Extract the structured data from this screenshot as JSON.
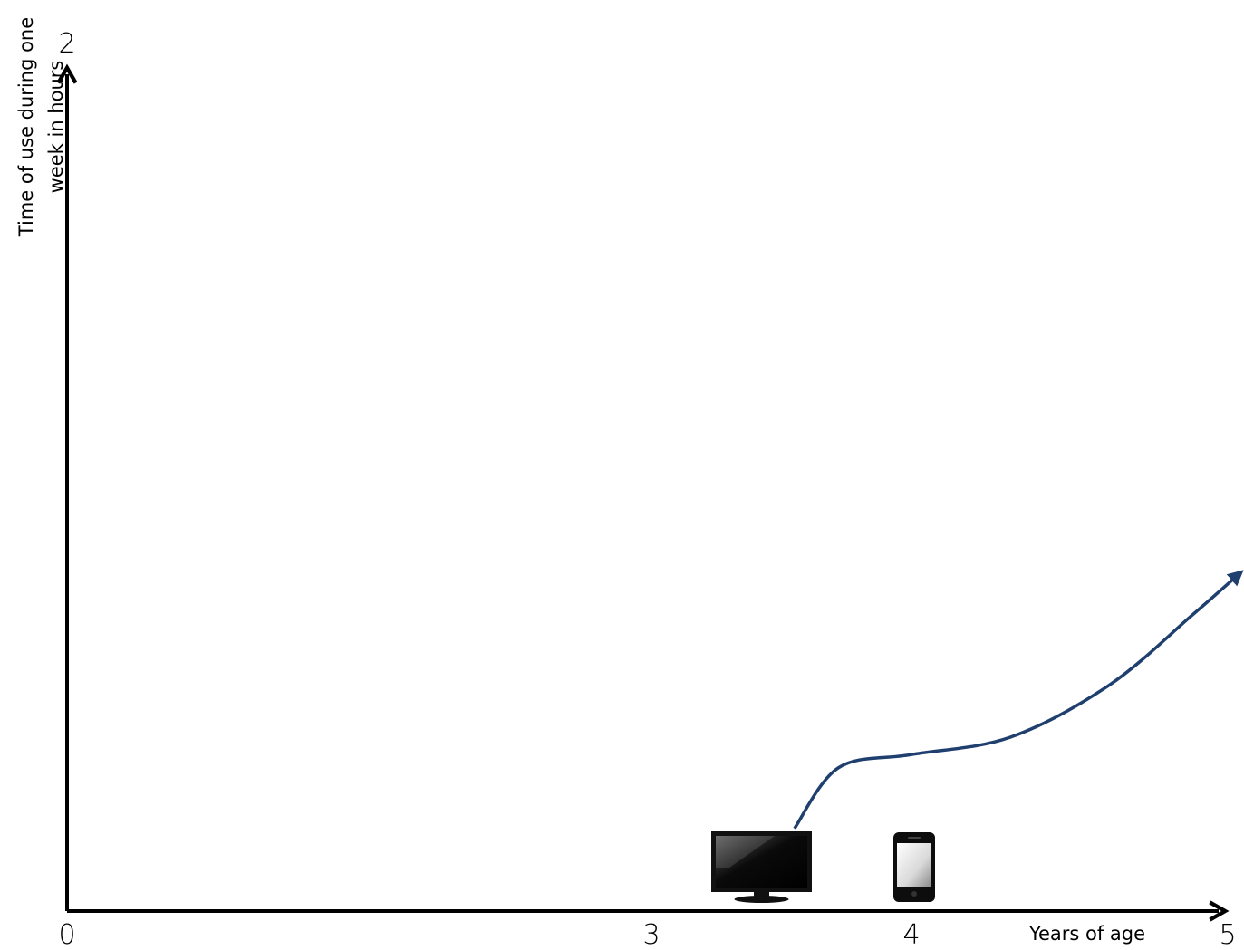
{
  "chart_data": {
    "type": "line",
    "title": "",
    "xlabel": "Years of age",
    "ylabel": [
      "Time of use during one",
      "week in hours"
    ],
    "x_ticks": [
      {
        "label": "0",
        "value": 0
      },
      {
        "label": "3",
        "value": 3
      },
      {
        "label": "4",
        "value": 4
      },
      {
        "label": "5",
        "value": 5
      }
    ],
    "y_ticks": [
      {
        "label": "2",
        "value": 2
      }
    ],
    "xlim": [
      0,
      5
    ],
    "ylim": [
      0,
      2
    ],
    "grid": false,
    "series": [
      {
        "color": "#1f3f6e",
        "x": [
          3.55,
          3.72,
          4.0,
          4.3,
          4.6,
          4.85,
          5.0
        ],
        "y": [
          0.19,
          0.33,
          0.36,
          0.4,
          0.52,
          0.68,
          0.78
        ]
      }
    ],
    "icons": [
      {
        "name": "tv-icon",
        "x": 3.4
      },
      {
        "name": "smartphone-icon",
        "x": 4.0
      }
    ]
  }
}
